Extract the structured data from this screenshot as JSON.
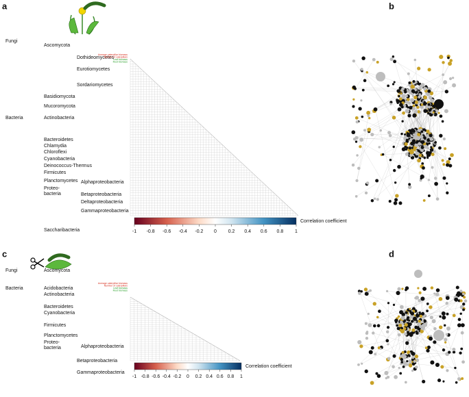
{
  "panel_a": {
    "label": "a",
    "kingdoms": [
      "Fungi",
      "Bacteria"
    ],
    "phyla": [
      "Ascomycota",
      "Basidiomycota",
      "Mucoromycota",
      "Actinobacteria",
      "Bacteroidetes",
      "Chlamydia",
      "Chloroflexi",
      "Cyanobacteria",
      "Deinococcus-Thermus",
      "Firmicutes",
      "Planctomycetes",
      "Proteo-",
      "bacteria",
      "Saccharibacteria"
    ],
    "classes": [
      "Dothideomycetes",
      "Eurotiomycetes",
      "Sordariomycetes",
      "Alphaproteobacteria",
      "Betaproteobacteria",
      "Deltaproteobacteria",
      "Gammaproteobacteria"
    ],
    "traits": [
      "Average caterpillar biomass",
      "Number of caterpillars",
      "Leaf biomass",
      "Root biomass"
    ],
    "colorbar": {
      "ticks": [
        -1,
        -0.8,
        -0.6,
        -0.4,
        -0.2,
        0,
        0.2,
        0.4,
        0.6,
        0.8,
        1
      ],
      "label": "Correlation coefficient"
    }
  },
  "panel_b": {
    "label": "b"
  },
  "panel_c": {
    "label": "c",
    "kingdoms": [
      "Fungi",
      "Bacteria"
    ],
    "phyla": [
      "Ascomycota",
      "Acidobacteria",
      "Actinobacteria",
      "Bacteroidetes",
      "Cyanobacteria",
      "Firmicutes",
      "Planctomycetes",
      "Proteo-",
      "bacteria"
    ],
    "classes": [
      "Alphaproteobacteria",
      "Betaproteobacteria",
      "Gammaproteobacteria"
    ],
    "traits": [
      "Average caterpillar biomass",
      "Number of caterpillars",
      "Leaf biomass",
      "Root biomass"
    ],
    "colorbar": {
      "ticks": [
        -1,
        -0.8,
        -0.6,
        -0.4,
        -0.2,
        0,
        0.2,
        0.4,
        0.6,
        0.8,
        1
      ],
      "label": "Correlation coefficient"
    }
  },
  "panel_d": {
    "label": "d"
  }
}
